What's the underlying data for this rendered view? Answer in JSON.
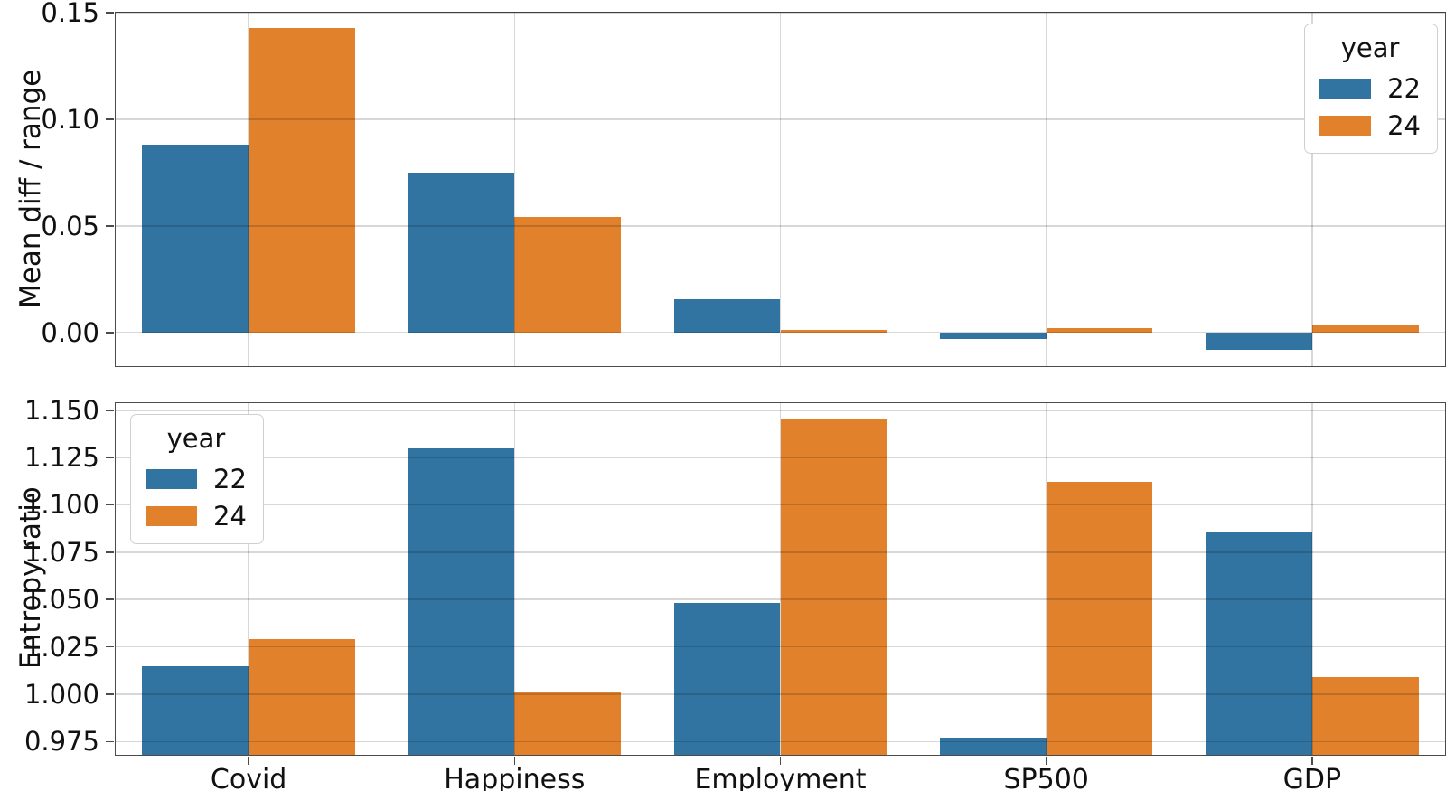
{
  "colors": {
    "series_22": "#3274a1",
    "series_24": "#e1812c",
    "grid": "#d9d9d9",
    "spine": "#4b4b4b",
    "text": "#111111"
  },
  "legend": {
    "title": "year",
    "entries": [
      {
        "label": "22",
        "color_key": "series_22"
      },
      {
        "label": "24",
        "color_key": "series_24"
      }
    ]
  },
  "chart_data": [
    {
      "type": "bar",
      "title": "",
      "xlabel": "",
      "ylabel": "Mean diff / range",
      "categories": [
        "Covid",
        "Happiness",
        "Employment",
        "SP500",
        "GDP"
      ],
      "series": [
        {
          "name": "22",
          "color_key": "series_22",
          "values": [
            0.088,
            0.075,
            0.0155,
            -0.003,
            -0.008
          ]
        },
        {
          "name": "24",
          "color_key": "series_24",
          "values": [
            0.143,
            0.054,
            0.001,
            0.002,
            0.0035
          ]
        }
      ],
      "ylim": [
        -0.0158,
        0.15
      ],
      "yticks": [
        0.0,
        0.05,
        0.1,
        0.15
      ],
      "ytick_decimals": 2,
      "grid": true,
      "legend_position": "upper right",
      "show_xticklabels": false
    },
    {
      "type": "bar",
      "title": "",
      "xlabel": "",
      "ylabel": "Entropy ratio",
      "categories": [
        "Covid",
        "Happiness",
        "Employment",
        "SP500",
        "GDP"
      ],
      "series": [
        {
          "name": "22",
          "color_key": "series_22",
          "values": [
            1.015,
            1.13,
            1.048,
            0.977,
            1.086
          ]
        },
        {
          "name": "24",
          "color_key": "series_24",
          "values": [
            1.029,
            1.001,
            1.145,
            1.112,
            1.009
          ]
        }
      ],
      "ylim": [
        0.968,
        1.1537
      ],
      "yticks": [
        0.975,
        1.0,
        1.025,
        1.05,
        1.075,
        1.1,
        1.125,
        1.15
      ],
      "ytick_decimals": 3,
      "grid": true,
      "legend_position": "upper left",
      "show_xticklabels": true
    }
  ],
  "layout_note_values_visible_only": true
}
